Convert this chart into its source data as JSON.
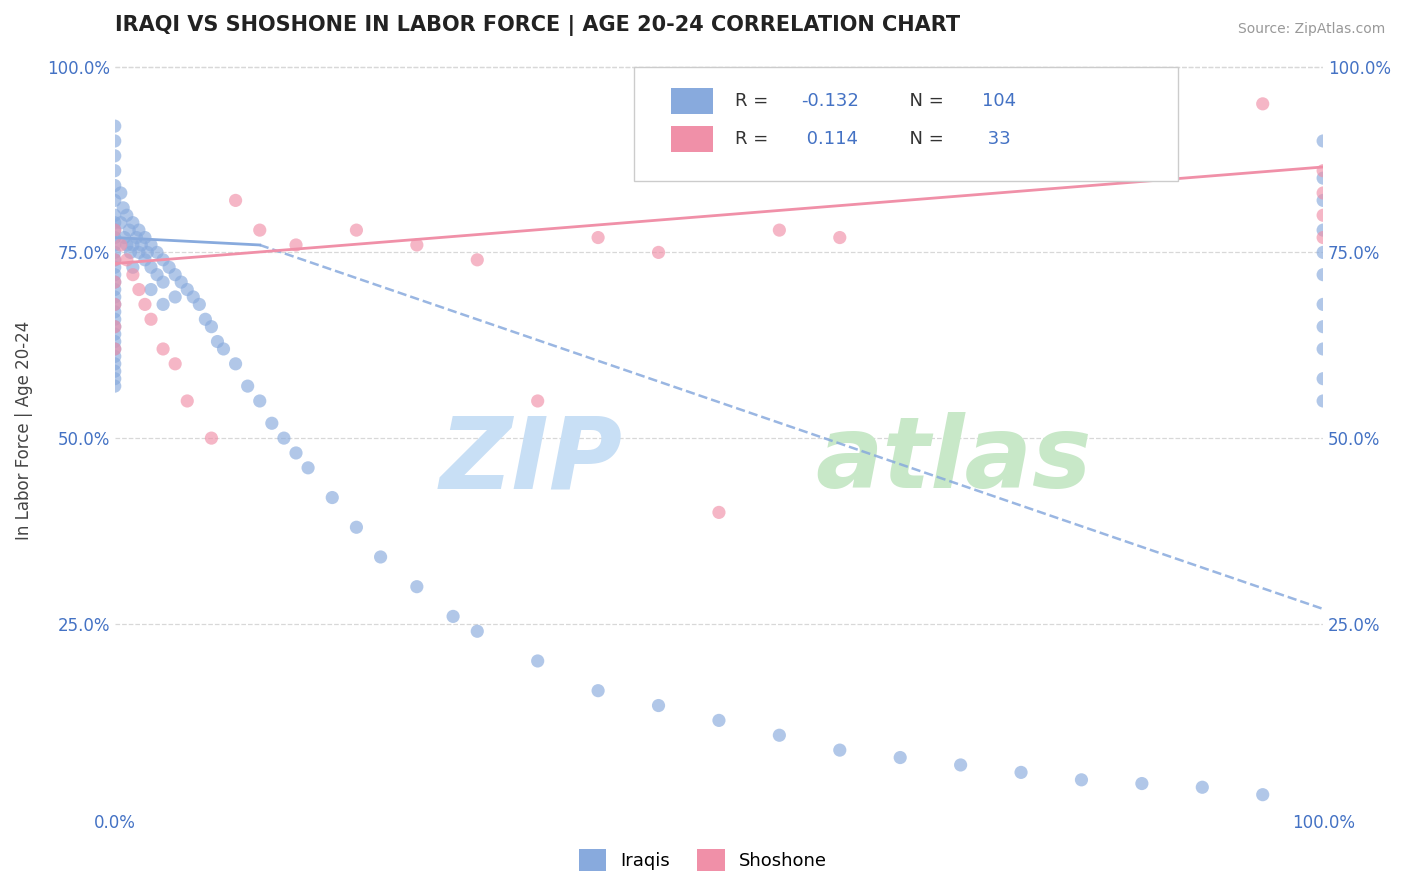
{
  "title": "IRAQI VS SHOSHONE IN LABOR FORCE | AGE 20-24 CORRELATION CHART",
  "source": "Source: ZipAtlas.com",
  "ylabel": "In Labor Force | Age 20-24",
  "xmin": 0.0,
  "xmax": 1.0,
  "ymin": 0.0,
  "ymax": 1.0,
  "legend_Iraqi_R": -0.132,
  "legend_Iraqi_N": 104,
  "legend_Shoshone_R": 0.114,
  "legend_Shoshone_N": 33,
  "Iraqi_color": "#88aadd",
  "Shoshone_color": "#f090a8",
  "Iraqi_scatter_x": [
    0.0,
    0.0,
    0.0,
    0.0,
    0.0,
    0.0,
    0.0,
    0.0,
    0.0,
    0.0,
    0.0,
    0.0,
    0.0,
    0.0,
    0.0,
    0.0,
    0.0,
    0.0,
    0.0,
    0.0,
    0.0,
    0.0,
    0.0,
    0.0,
    0.0,
    0.0,
    0.0,
    0.0,
    0.0,
    0.0,
    0.005,
    0.005,
    0.007,
    0.008,
    0.01,
    0.01,
    0.012,
    0.013,
    0.015,
    0.015,
    0.015,
    0.018,
    0.02,
    0.02,
    0.022,
    0.025,
    0.025,
    0.027,
    0.03,
    0.03,
    0.03,
    0.035,
    0.035,
    0.04,
    0.04,
    0.04,
    0.045,
    0.05,
    0.05,
    0.055,
    0.06,
    0.065,
    0.07,
    0.075,
    0.08,
    0.085,
    0.09,
    0.1,
    0.11,
    0.12,
    0.13,
    0.14,
    0.15,
    0.16,
    0.18,
    0.2,
    0.22,
    0.25,
    0.28,
    0.3,
    0.35,
    0.4,
    0.45,
    0.5,
    0.55,
    0.6,
    0.65,
    0.7,
    0.75,
    0.8,
    0.85,
    0.9,
    0.95,
    1.0,
    1.0,
    1.0,
    1.0,
    1.0,
    1.0,
    1.0,
    1.0,
    1.0,
    1.0,
    1.0
  ],
  "Iraqi_scatter_y": [
    0.92,
    0.9,
    0.88,
    0.86,
    0.84,
    0.82,
    0.8,
    0.79,
    0.78,
    0.77,
    0.76,
    0.75,
    0.74,
    0.73,
    0.72,
    0.71,
    0.7,
    0.69,
    0.68,
    0.67,
    0.66,
    0.65,
    0.64,
    0.63,
    0.62,
    0.61,
    0.6,
    0.59,
    0.58,
    0.57,
    0.83,
    0.79,
    0.81,
    0.77,
    0.8,
    0.76,
    0.78,
    0.75,
    0.79,
    0.76,
    0.73,
    0.77,
    0.78,
    0.75,
    0.76,
    0.77,
    0.74,
    0.75,
    0.76,
    0.73,
    0.7,
    0.75,
    0.72,
    0.74,
    0.71,
    0.68,
    0.73,
    0.72,
    0.69,
    0.71,
    0.7,
    0.69,
    0.68,
    0.66,
    0.65,
    0.63,
    0.62,
    0.6,
    0.57,
    0.55,
    0.52,
    0.5,
    0.48,
    0.46,
    0.42,
    0.38,
    0.34,
    0.3,
    0.26,
    0.24,
    0.2,
    0.16,
    0.14,
    0.12,
    0.1,
    0.08,
    0.07,
    0.06,
    0.05,
    0.04,
    0.035,
    0.03,
    0.02,
    0.9,
    0.85,
    0.82,
    0.78,
    0.75,
    0.72,
    0.68,
    0.65,
    0.62,
    0.58,
    0.55
  ],
  "Shoshone_scatter_x": [
    0.0,
    0.0,
    0.0,
    0.0,
    0.0,
    0.0,
    0.005,
    0.01,
    0.015,
    0.02,
    0.025,
    0.03,
    0.04,
    0.05,
    0.06,
    0.08,
    0.1,
    0.12,
    0.15,
    0.2,
    0.25,
    0.3,
    0.35,
    0.4,
    0.45,
    0.5,
    0.55,
    0.6,
    0.95,
    1.0,
    1.0,
    1.0,
    1.0
  ],
  "Shoshone_scatter_y": [
    0.78,
    0.74,
    0.71,
    0.68,
    0.65,
    0.62,
    0.76,
    0.74,
    0.72,
    0.7,
    0.68,
    0.66,
    0.62,
    0.6,
    0.55,
    0.5,
    0.82,
    0.78,
    0.76,
    0.78,
    0.76,
    0.74,
    0.55,
    0.77,
    0.75,
    0.4,
    0.78,
    0.77,
    0.95,
    0.86,
    0.83,
    0.8,
    0.77
  ],
  "Iraqi_trend_x0": 0.0,
  "Iraqi_trend_x1": 1.0,
  "Iraqi_trend_y0": 0.77,
  "Iraqi_trend_y1": 0.67,
  "Iraqi_trend_dashed_x0": 0.12,
  "Iraqi_trend_dashed_x1": 1.0,
  "Iraqi_trend_dashed_y0": 0.76,
  "Iraqi_trend_dashed_y1": 0.27,
  "Shoshone_trend_x0": 0.0,
  "Shoshone_trend_x1": 1.0,
  "Shoshone_trend_y0": 0.735,
  "Shoshone_trend_y1": 0.865,
  "bg_color": "#ffffff",
  "grid_color": "#d8d8d8",
  "title_color": "#222222",
  "axis_tick_color": "#4472c4",
  "source_color": "#999999",
  "watermark_zip_color": "#c8dff5",
  "watermark_atlas_color": "#c8e8c8"
}
